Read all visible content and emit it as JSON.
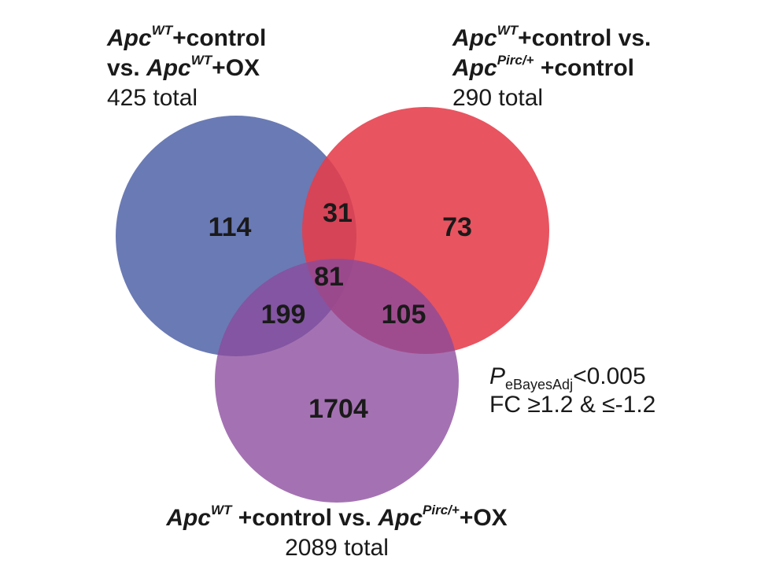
{
  "sets": {
    "a": {
      "line1_gene": "Apc",
      "line1_sup": "WT",
      "line1_rest": "+control",
      "line2_prefix": "vs. ",
      "line2_gene": "Apc",
      "line2_sup": "WT",
      "line2_rest": "+OX",
      "total": "425 total",
      "color": "#5568aa"
    },
    "b": {
      "line1_gene": "Apc",
      "line1_sup": "WT",
      "line1_rest": "+control vs.",
      "line2_gene": "Apc",
      "line2_sup": "Pirc/+",
      "line2_rest": " +control",
      "total": "290 total",
      "color": "#e53c4a"
    },
    "c": {
      "gene1": "Apc",
      "sup1": "WT",
      "mid": " +control vs. ",
      "gene2": "Apc",
      "sup2": "Pirc/+",
      "rest": "+OX",
      "total": "2089 total",
      "color": "#8a4a9c"
    }
  },
  "regions": {
    "a_only": "114",
    "b_only": "73",
    "c_only": "1704",
    "ab": "31",
    "ac": "199",
    "bc": "105",
    "abc": "81"
  },
  "threshold": {
    "p_symbol": "P",
    "p_sub": "eBayesAdj",
    "p_value": "<0.005",
    "fc": "FC ≥1.2 & ≤-1.2"
  }
}
